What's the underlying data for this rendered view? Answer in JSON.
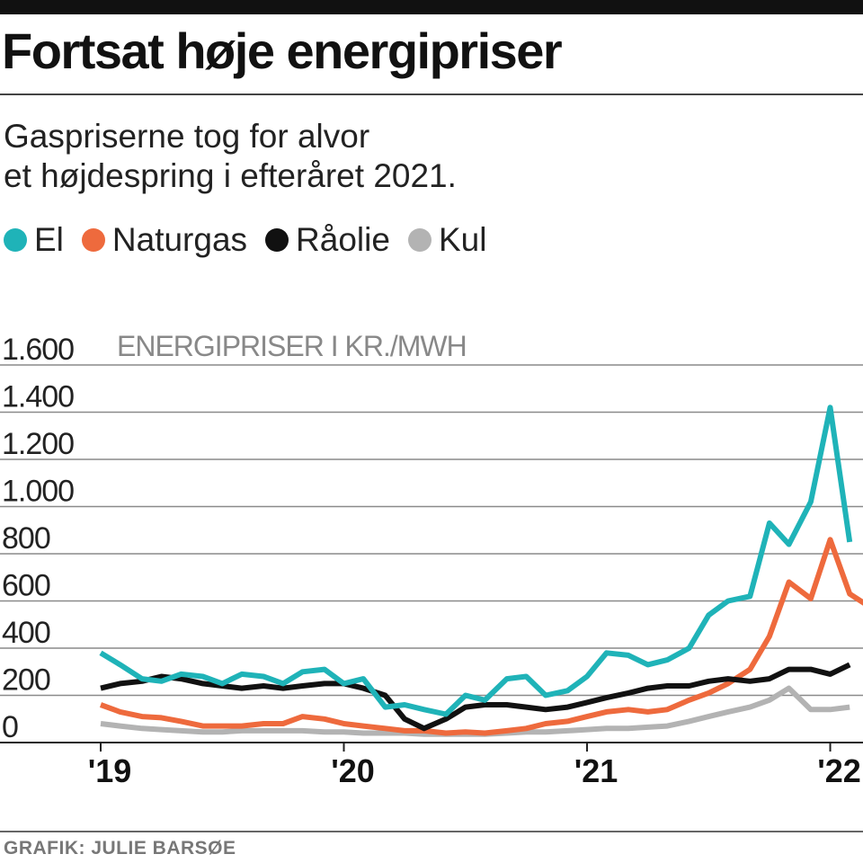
{
  "header": {
    "title": "Fortsat høje energipriser",
    "subtitle_line1": "Gaspriserne tog for alvor",
    "subtitle_line2": "et højdespring i efteråret 2021."
  },
  "legend": [
    {
      "label": "El",
      "color": "#1fb3b8"
    },
    {
      "label": "Naturgas",
      "color": "#ee6a3d"
    },
    {
      "label": "Råolie",
      "color": "#111111"
    },
    {
      "label": "Kul",
      "color": "#b3b3b3"
    }
  ],
  "footer": {
    "credit": "GRAFIK: JULIE BARSØE"
  },
  "chart_data": {
    "type": "line",
    "title": "ENERGIPRISER I KR./MWH",
    "ylabel": "ENERGIPRISER I KR./MWH",
    "xlabel": "",
    "ylim": [
      0,
      1600
    ],
    "yticks": [
      0,
      200,
      400,
      600,
      800,
      1000,
      1200,
      1400,
      1600
    ],
    "ytick_labels": [
      "0",
      "200",
      "400",
      "600",
      "800",
      "1.000",
      "1.200",
      "1.400",
      "1.600"
    ],
    "xlim": [
      2019.0,
      2022.12
    ],
    "xticks": [
      2019.0,
      2020.0,
      2021.0,
      2022.0
    ],
    "xtick_labels": [
      "'19",
      "'20",
      "'21",
      "'22"
    ],
    "grid": true,
    "series": [
      {
        "name": "El",
        "color": "#1fb3b8",
        "points": [
          [
            2019.0,
            380
          ],
          [
            2019.08,
            330
          ],
          [
            2019.17,
            270
          ],
          [
            2019.25,
            260
          ],
          [
            2019.33,
            290
          ],
          [
            2019.42,
            280
          ],
          [
            2019.5,
            250
          ],
          [
            2019.58,
            290
          ],
          [
            2019.67,
            280
          ],
          [
            2019.75,
            250
          ],
          [
            2019.83,
            300
          ],
          [
            2019.92,
            310
          ],
          [
            2020.0,
            250
          ],
          [
            2020.08,
            270
          ],
          [
            2020.17,
            150
          ],
          [
            2020.25,
            160
          ],
          [
            2020.33,
            140
          ],
          [
            2020.42,
            120
          ],
          [
            2020.5,
            200
          ],
          [
            2020.58,
            180
          ],
          [
            2020.67,
            270
          ],
          [
            2020.75,
            280
          ],
          [
            2020.83,
            200
          ],
          [
            2020.92,
            220
          ],
          [
            2021.0,
            280
          ],
          [
            2021.08,
            380
          ],
          [
            2021.17,
            370
          ],
          [
            2021.25,
            330
          ],
          [
            2021.33,
            350
          ],
          [
            2021.42,
            400
          ],
          [
            2021.5,
            540
          ],
          [
            2021.58,
            600
          ],
          [
            2021.67,
            620
          ],
          [
            2021.75,
            930
          ],
          [
            2021.83,
            840
          ],
          [
            2021.92,
            1020
          ],
          [
            2022.0,
            1420
          ],
          [
            2022.08,
            850
          ]
        ]
      },
      {
        "name": "Naturgas",
        "color": "#ee6a3d",
        "points": [
          [
            2019.0,
            160
          ],
          [
            2019.08,
            130
          ],
          [
            2019.17,
            110
          ],
          [
            2019.25,
            105
          ],
          [
            2019.33,
            90
          ],
          [
            2019.42,
            70
          ],
          [
            2019.5,
            70
          ],
          [
            2019.58,
            70
          ],
          [
            2019.67,
            80
          ],
          [
            2019.75,
            80
          ],
          [
            2019.83,
            110
          ],
          [
            2019.92,
            100
          ],
          [
            2020.0,
            80
          ],
          [
            2020.08,
            70
          ],
          [
            2020.17,
            60
          ],
          [
            2020.25,
            50
          ],
          [
            2020.33,
            50
          ],
          [
            2020.42,
            40
          ],
          [
            2020.5,
            45
          ],
          [
            2020.58,
            40
          ],
          [
            2020.67,
            50
          ],
          [
            2020.75,
            60
          ],
          [
            2020.83,
            80
          ],
          [
            2020.92,
            90
          ],
          [
            2021.0,
            110
          ],
          [
            2021.08,
            130
          ],
          [
            2021.17,
            140
          ],
          [
            2021.25,
            130
          ],
          [
            2021.33,
            140
          ],
          [
            2021.42,
            180
          ],
          [
            2021.5,
            210
          ],
          [
            2021.58,
            250
          ],
          [
            2021.67,
            310
          ],
          [
            2021.75,
            450
          ],
          [
            2021.83,
            680
          ],
          [
            2021.92,
            610
          ],
          [
            2022.0,
            860
          ],
          [
            2022.08,
            630
          ],
          [
            2022.17,
            570
          ]
        ]
      },
      {
        "name": "Råolie",
        "color": "#111111",
        "points": [
          [
            2019.0,
            230
          ],
          [
            2019.08,
            250
          ],
          [
            2019.17,
            260
          ],
          [
            2019.25,
            280
          ],
          [
            2019.33,
            270
          ],
          [
            2019.42,
            250
          ],
          [
            2019.5,
            240
          ],
          [
            2019.58,
            230
          ],
          [
            2019.67,
            240
          ],
          [
            2019.75,
            230
          ],
          [
            2019.83,
            240
          ],
          [
            2019.92,
            250
          ],
          [
            2020.0,
            250
          ],
          [
            2020.08,
            230
          ],
          [
            2020.17,
            200
          ],
          [
            2020.25,
            100
          ],
          [
            2020.33,
            60
          ],
          [
            2020.42,
            100
          ],
          [
            2020.5,
            150
          ],
          [
            2020.58,
            160
          ],
          [
            2020.67,
            160
          ],
          [
            2020.75,
            150
          ],
          [
            2020.83,
            140
          ],
          [
            2020.92,
            150
          ],
          [
            2021.0,
            170
          ],
          [
            2021.08,
            190
          ],
          [
            2021.17,
            210
          ],
          [
            2021.25,
            230
          ],
          [
            2021.33,
            240
          ],
          [
            2021.42,
            240
          ],
          [
            2021.5,
            260
          ],
          [
            2021.58,
            270
          ],
          [
            2021.67,
            260
          ],
          [
            2021.75,
            270
          ],
          [
            2021.83,
            310
          ],
          [
            2021.92,
            310
          ],
          [
            2022.0,
            290
          ],
          [
            2022.08,
            330
          ]
        ]
      },
      {
        "name": "Kul",
        "color": "#b3b3b3",
        "points": [
          [
            2019.0,
            80
          ],
          [
            2019.08,
            70
          ],
          [
            2019.17,
            60
          ],
          [
            2019.25,
            55
          ],
          [
            2019.33,
            50
          ],
          [
            2019.42,
            45
          ],
          [
            2019.5,
            45
          ],
          [
            2019.58,
            50
          ],
          [
            2019.67,
            50
          ],
          [
            2019.75,
            50
          ],
          [
            2019.83,
            50
          ],
          [
            2019.92,
            45
          ],
          [
            2020.0,
            45
          ],
          [
            2020.08,
            40
          ],
          [
            2020.17,
            40
          ],
          [
            2020.25,
            40
          ],
          [
            2020.33,
            35
          ],
          [
            2020.42,
            35
          ],
          [
            2020.5,
            35
          ],
          [
            2020.58,
            35
          ],
          [
            2020.67,
            40
          ],
          [
            2020.75,
            45
          ],
          [
            2020.83,
            45
          ],
          [
            2020.92,
            50
          ],
          [
            2021.0,
            55
          ],
          [
            2021.08,
            60
          ],
          [
            2021.17,
            60
          ],
          [
            2021.25,
            65
          ],
          [
            2021.33,
            70
          ],
          [
            2021.42,
            90
          ],
          [
            2021.5,
            110
          ],
          [
            2021.58,
            130
          ],
          [
            2021.67,
            150
          ],
          [
            2021.75,
            180
          ],
          [
            2021.83,
            230
          ],
          [
            2021.92,
            140
          ],
          [
            2022.0,
            140
          ],
          [
            2022.08,
            150
          ]
        ]
      }
    ]
  }
}
